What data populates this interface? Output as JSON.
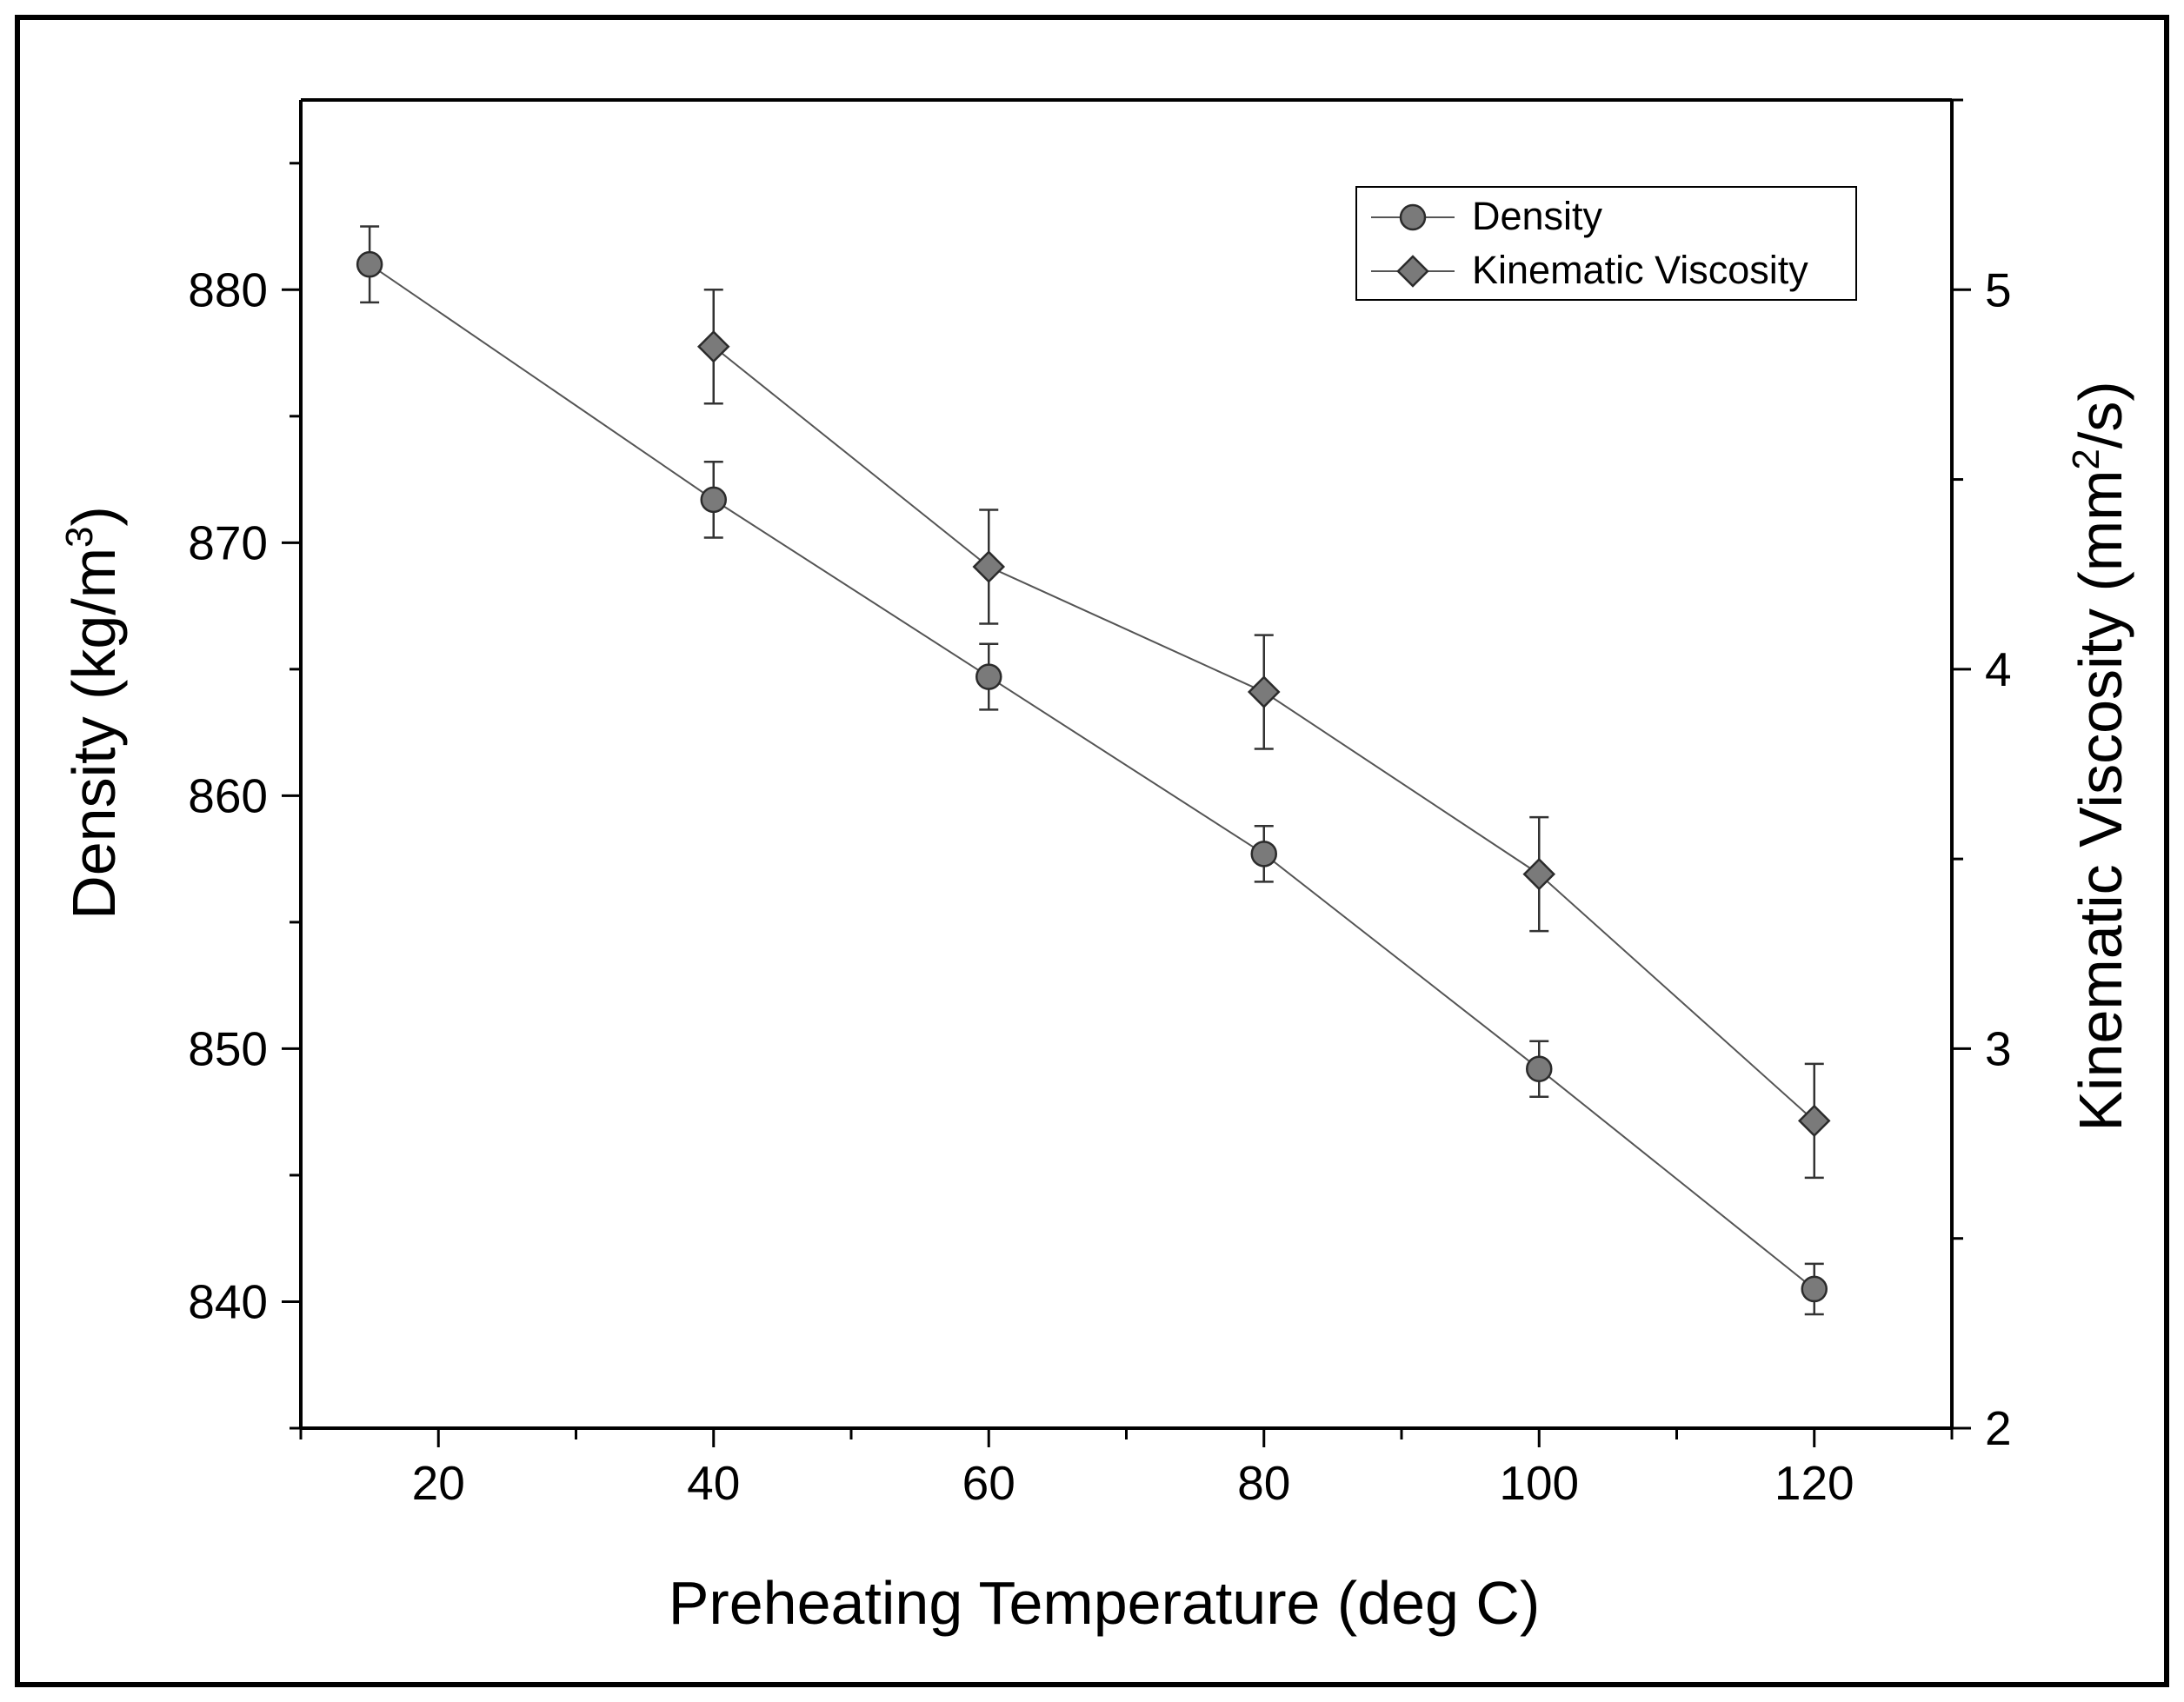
{
  "chart_data": {
    "type": "line",
    "title": "",
    "xlabel": "Preheating Temperature (deg C)",
    "ylabel": {
      "main": "Density (kg/m",
      "sup": "3",
      "tail": ")"
    },
    "y2label": {
      "main": "Kinematic Viscosity (mm",
      "sup": "2",
      "tail": "/s)"
    },
    "xlim": [
      10,
      130
    ],
    "ylim": [
      835,
      887.5
    ],
    "y2lim": [
      2,
      5.5
    ],
    "x_ticks": [
      "20",
      "40",
      "60",
      "80",
      "100",
      "120"
    ],
    "y_ticks": [
      "840",
      "850",
      "860",
      "870",
      "880"
    ],
    "y2_ticks": [
      "2",
      "3",
      "4",
      "5"
    ],
    "legend_position": "top-right",
    "series": [
      {
        "name": "Density",
        "axis": "left",
        "marker": "circle",
        "color": "#7a7a7a",
        "x": [
          15,
          40,
          60,
          80,
          100,
          120
        ],
        "y": [
          881,
          871.7,
          864.7,
          857.7,
          849.2,
          840.5
        ],
        "err": [
          1.5,
          1.5,
          1.3,
          1.1,
          1.1,
          1.0
        ]
      },
      {
        "name": "Kinematic Viscosity",
        "axis": "right",
        "marker": "diamond",
        "color": "#7a7a7a",
        "x": [
          40,
          60,
          80,
          100,
          120
        ],
        "y": [
          4.85,
          4.27,
          3.94,
          3.46,
          2.81
        ],
        "err": [
          0.15,
          0.15,
          0.15,
          0.15,
          0.15
        ]
      }
    ]
  }
}
